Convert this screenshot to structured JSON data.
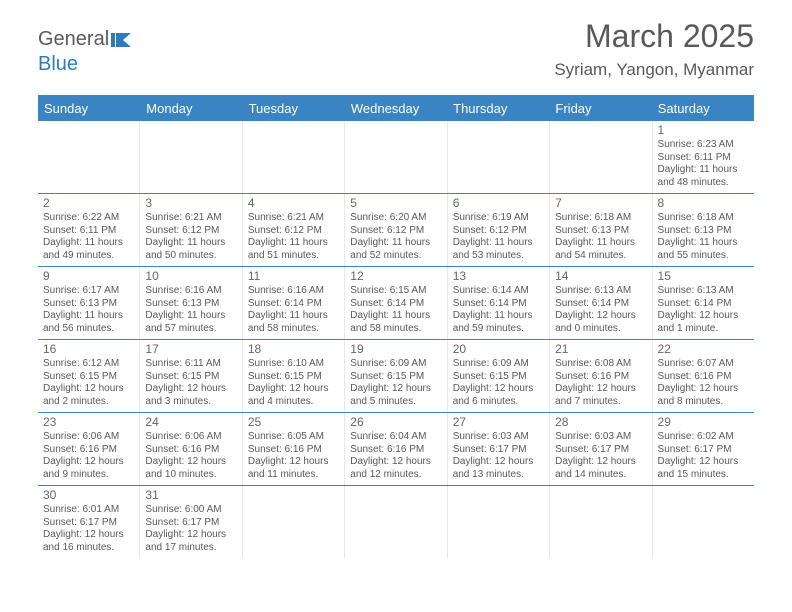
{
  "logo": {
    "text1": "General",
    "text2": "Blue"
  },
  "title": "March 2025",
  "subtitle": "Syriam, Yangon, Myanmar",
  "colors": {
    "header_bg": "#3a84c4",
    "text": "#595959"
  },
  "dayNames": [
    "Sunday",
    "Monday",
    "Tuesday",
    "Wednesday",
    "Thursday",
    "Friday",
    "Saturday"
  ],
  "days": {
    "1": {
      "sunrise": "6:23 AM",
      "sunset": "6:11 PM",
      "daylight": "11 hours and 48 minutes."
    },
    "2": {
      "sunrise": "6:22 AM",
      "sunset": "6:11 PM",
      "daylight": "11 hours and 49 minutes."
    },
    "3": {
      "sunrise": "6:21 AM",
      "sunset": "6:12 PM",
      "daylight": "11 hours and 50 minutes."
    },
    "4": {
      "sunrise": "6:21 AM",
      "sunset": "6:12 PM",
      "daylight": "11 hours and 51 minutes."
    },
    "5": {
      "sunrise": "6:20 AM",
      "sunset": "6:12 PM",
      "daylight": "11 hours and 52 minutes."
    },
    "6": {
      "sunrise": "6:19 AM",
      "sunset": "6:12 PM",
      "daylight": "11 hours and 53 minutes."
    },
    "7": {
      "sunrise": "6:18 AM",
      "sunset": "6:13 PM",
      "daylight": "11 hours and 54 minutes."
    },
    "8": {
      "sunrise": "6:18 AM",
      "sunset": "6:13 PM",
      "daylight": "11 hours and 55 minutes."
    },
    "9": {
      "sunrise": "6:17 AM",
      "sunset": "6:13 PM",
      "daylight": "11 hours and 56 minutes."
    },
    "10": {
      "sunrise": "6:16 AM",
      "sunset": "6:13 PM",
      "daylight": "11 hours and 57 minutes."
    },
    "11": {
      "sunrise": "6:16 AM",
      "sunset": "6:14 PM",
      "daylight": "11 hours and 58 minutes."
    },
    "12": {
      "sunrise": "6:15 AM",
      "sunset": "6:14 PM",
      "daylight": "11 hours and 58 minutes."
    },
    "13": {
      "sunrise": "6:14 AM",
      "sunset": "6:14 PM",
      "daylight": "11 hours and 59 minutes."
    },
    "14": {
      "sunrise": "6:13 AM",
      "sunset": "6:14 PM",
      "daylight": "12 hours and 0 minutes."
    },
    "15": {
      "sunrise": "6:13 AM",
      "sunset": "6:14 PM",
      "daylight": "12 hours and 1 minute."
    },
    "16": {
      "sunrise": "6:12 AM",
      "sunset": "6:15 PM",
      "daylight": "12 hours and 2 minutes."
    },
    "17": {
      "sunrise": "6:11 AM",
      "sunset": "6:15 PM",
      "daylight": "12 hours and 3 minutes."
    },
    "18": {
      "sunrise": "6:10 AM",
      "sunset": "6:15 PM",
      "daylight": "12 hours and 4 minutes."
    },
    "19": {
      "sunrise": "6:09 AM",
      "sunset": "6:15 PM",
      "daylight": "12 hours and 5 minutes."
    },
    "20": {
      "sunrise": "6:09 AM",
      "sunset": "6:15 PM",
      "daylight": "12 hours and 6 minutes."
    },
    "21": {
      "sunrise": "6:08 AM",
      "sunset": "6:16 PM",
      "daylight": "12 hours and 7 minutes."
    },
    "22": {
      "sunrise": "6:07 AM",
      "sunset": "6:16 PM",
      "daylight": "12 hours and 8 minutes."
    },
    "23": {
      "sunrise": "6:06 AM",
      "sunset": "6:16 PM",
      "daylight": "12 hours and 9 minutes."
    },
    "24": {
      "sunrise": "6:06 AM",
      "sunset": "6:16 PM",
      "daylight": "12 hours and 10 minutes."
    },
    "25": {
      "sunrise": "6:05 AM",
      "sunset": "6:16 PM",
      "daylight": "12 hours and 11 minutes."
    },
    "26": {
      "sunrise": "6:04 AM",
      "sunset": "6:16 PM",
      "daylight": "12 hours and 12 minutes."
    },
    "27": {
      "sunrise": "6:03 AM",
      "sunset": "6:17 PM",
      "daylight": "12 hours and 13 minutes."
    },
    "28": {
      "sunrise": "6:03 AM",
      "sunset": "6:17 PM",
      "daylight": "12 hours and 14 minutes."
    },
    "29": {
      "sunrise": "6:02 AM",
      "sunset": "6:17 PM",
      "daylight": "12 hours and 15 minutes."
    },
    "30": {
      "sunrise": "6:01 AM",
      "sunset": "6:17 PM",
      "daylight": "12 hours and 16 minutes."
    },
    "31": {
      "sunrise": "6:00 AM",
      "sunset": "6:17 PM",
      "daylight": "12 hours and 17 minutes."
    }
  },
  "labels": {
    "sunrise": "Sunrise:",
    "sunset": "Sunset:",
    "daylight": "Daylight:"
  },
  "grid": [
    [
      0,
      0,
      0,
      0,
      0,
      0,
      1
    ],
    [
      2,
      3,
      4,
      5,
      6,
      7,
      8
    ],
    [
      9,
      10,
      11,
      12,
      13,
      14,
      15
    ],
    [
      16,
      17,
      18,
      19,
      20,
      21,
      22
    ],
    [
      23,
      24,
      25,
      26,
      27,
      28,
      29
    ],
    [
      30,
      31,
      0,
      0,
      0,
      0,
      0
    ]
  ]
}
